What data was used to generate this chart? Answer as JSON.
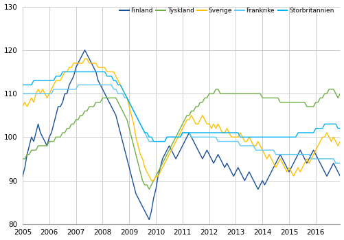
{
  "ylim": [
    80,
    130
  ],
  "xlim": [
    2005.0,
    2016.917
  ],
  "yticks": [
    80,
    90,
    100,
    110,
    120,
    130
  ],
  "xtick_labels": [
    "2005",
    "2006",
    "2007",
    "2008",
    "2009",
    "2010",
    "2011",
    "2012",
    "2013",
    "2014",
    "2015",
    "2016"
  ],
  "xtick_positions": [
    2005,
    2006,
    2007,
    2008,
    2009,
    2010,
    2011,
    2012,
    2013,
    2014,
    2015,
    2016
  ],
  "legend": [
    "Finland",
    "Tyskland",
    "Sverige",
    "Frankrike",
    "Storbritannien"
  ],
  "colors": [
    "#1a4e96",
    "#70ad47",
    "#ffc000",
    "#5bc8f5",
    "#00b0f0"
  ],
  "line_width": 1.0,
  "background_color": "#ffffff",
  "grid_color": "#c8c8c8",
  "series": {
    "Finland": [
      91,
      93,
      96,
      98,
      100,
      99,
      101,
      103,
      101,
      100,
      99,
      98,
      100,
      101,
      103,
      105,
      107,
      107,
      108,
      110,
      110,
      112,
      113,
      114,
      116,
      117,
      118,
      119,
      120,
      119,
      118,
      117,
      116,
      115,
      113,
      112,
      111,
      110,
      109,
      108,
      107,
      106,
      105,
      103,
      101,
      99,
      97,
      95,
      93,
      91,
      89,
      87,
      86,
      85,
      84,
      83,
      82,
      81,
      83,
      86,
      88,
      91,
      93,
      95,
      96,
      97,
      98,
      97,
      96,
      95,
      96,
      97,
      98,
      99,
      100,
      101,
      100,
      99,
      98,
      97,
      96,
      95,
      96,
      97,
      96,
      95,
      94,
      95,
      96,
      95,
      94,
      93,
      94,
      93,
      92,
      91,
      92,
      93,
      92,
      91,
      90,
      91,
      92,
      91,
      90,
      89,
      88,
      89,
      90,
      89,
      90,
      91,
      92,
      93,
      94,
      95,
      96,
      95,
      94,
      93,
      92,
      93,
      94,
      95,
      96,
      97,
      96,
      95,
      94,
      95,
      96,
      97,
      96,
      95,
      94,
      93,
      92,
      91,
      92,
      93,
      94,
      93,
      92,
      91
    ],
    "Tyskland": [
      95,
      95,
      96,
      96,
      97,
      97,
      97,
      98,
      98,
      98,
      98,
      98,
      99,
      99,
      99,
      100,
      100,
      100,
      101,
      101,
      102,
      102,
      103,
      103,
      104,
      104,
      105,
      105,
      106,
      106,
      107,
      107,
      107,
      108,
      108,
      108,
      109,
      109,
      109,
      109,
      109,
      109,
      109,
      108,
      107,
      106,
      105,
      104,
      102,
      100,
      98,
      96,
      94,
      92,
      90,
      89,
      89,
      88,
      89,
      90,
      91,
      92,
      93,
      94,
      95,
      96,
      97,
      98,
      99,
      100,
      101,
      102,
      103,
      104,
      105,
      105,
      106,
      106,
      107,
      107,
      108,
      108,
      109,
      109,
      110,
      110,
      110,
      111,
      111,
      110,
      110,
      110,
      110,
      110,
      110,
      110,
      110,
      110,
      110,
      110,
      110,
      110,
      110,
      110,
      110,
      110,
      110,
      110,
      109,
      109,
      109,
      109,
      109,
      109,
      109,
      109,
      108,
      108,
      108,
      108,
      108,
      108,
      108,
      108,
      108,
      108,
      108,
      108,
      107,
      107,
      107,
      107,
      108,
      108,
      109,
      109,
      110,
      110,
      111,
      111,
      111,
      110,
      109,
      110
    ],
    "Sverige": [
      107,
      108,
      107,
      108,
      109,
      108,
      110,
      111,
      110,
      111,
      110,
      109,
      110,
      111,
      112,
      113,
      113,
      113,
      114,
      115,
      115,
      116,
      116,
      117,
      117,
      117,
      117,
      117,
      118,
      118,
      117,
      117,
      117,
      117,
      116,
      116,
      116,
      116,
      115,
      115,
      115,
      115,
      114,
      113,
      112,
      111,
      110,
      109,
      107,
      105,
      103,
      100,
      98,
      96,
      95,
      93,
      92,
      91,
      90,
      90,
      91,
      91,
      92,
      93,
      94,
      95,
      96,
      97,
      98,
      99,
      100,
      101,
      102,
      103,
      104,
      104,
      105,
      104,
      103,
      103,
      104,
      105,
      104,
      103,
      103,
      102,
      103,
      102,
      103,
      102,
      101,
      101,
      102,
      101,
      100,
      100,
      100,
      100,
      101,
      100,
      99,
      99,
      100,
      99,
      98,
      98,
      99,
      98,
      97,
      96,
      95,
      96,
      95,
      94,
      93,
      94,
      95,
      94,
      93,
      92,
      93,
      92,
      91,
      92,
      93,
      92,
      93,
      94,
      95,
      94,
      95,
      96,
      97,
      98,
      99,
      100,
      100,
      101,
      100,
      99,
      100,
      99,
      98,
      99
    ],
    "Frankrike": [
      110,
      110,
      110,
      110,
      110,
      110,
      110,
      110,
      110,
      110,
      110,
      110,
      110,
      110,
      111,
      111,
      111,
      111,
      111,
      111,
      111,
      111,
      111,
      111,
      111,
      112,
      112,
      112,
      112,
      112,
      112,
      112,
      112,
      112,
      112,
      112,
      112,
      112,
      112,
      112,
      112,
      111,
      111,
      110,
      110,
      110,
      109,
      109,
      108,
      107,
      106,
      105,
      104,
      103,
      102,
      101,
      100,
      99,
      99,
      99,
      99,
      99,
      99,
      99,
      99,
      100,
      100,
      100,
      100,
      100,
      100,
      100,
      101,
      101,
      101,
      101,
      100,
      100,
      100,
      100,
      100,
      100,
      100,
      100,
      100,
      100,
      100,
      100,
      99,
      99,
      99,
      99,
      99,
      99,
      99,
      99,
      99,
      99,
      98,
      98,
      98,
      98,
      98,
      98,
      98,
      97,
      97,
      97,
      97,
      97,
      97,
      97,
      97,
      97,
      96,
      96,
      96,
      96,
      96,
      96,
      96,
      96,
      96,
      96,
      96,
      96,
      96,
      96,
      96,
      96,
      95,
      95,
      95,
      95,
      95,
      95,
      95,
      95,
      95,
      95,
      95,
      94,
      94,
      94
    ],
    "Storbritannien": [
      112,
      112,
      112,
      112,
      112,
      113,
      113,
      113,
      113,
      113,
      113,
      113,
      113,
      113,
      113,
      114,
      114,
      114,
      115,
      115,
      115,
      115,
      115,
      115,
      115,
      115,
      115,
      115,
      115,
      115,
      115,
      115,
      115,
      115,
      115,
      115,
      115,
      115,
      114,
      114,
      114,
      113,
      113,
      112,
      112,
      111,
      110,
      109,
      108,
      107,
      106,
      105,
      104,
      103,
      102,
      101,
      101,
      100,
      100,
      99,
      99,
      99,
      99,
      99,
      99,
      100,
      100,
      100,
      100,
      100,
      100,
      100,
      101,
      101,
      101,
      101,
      101,
      101,
      101,
      101,
      101,
      101,
      101,
      101,
      101,
      101,
      101,
      101,
      101,
      101,
      101,
      101,
      101,
      101,
      101,
      101,
      101,
      101,
      100,
      100,
      100,
      100,
      100,
      100,
      100,
      100,
      100,
      100,
      100,
      100,
      100,
      100,
      100,
      100,
      100,
      100,
      100,
      100,
      100,
      100,
      100,
      100,
      100,
      100,
      101,
      101,
      101,
      101,
      101,
      101,
      101,
      101,
      102,
      102,
      102,
      102,
      103,
      103,
      103,
      103,
      103,
      103,
      102,
      102
    ]
  }
}
